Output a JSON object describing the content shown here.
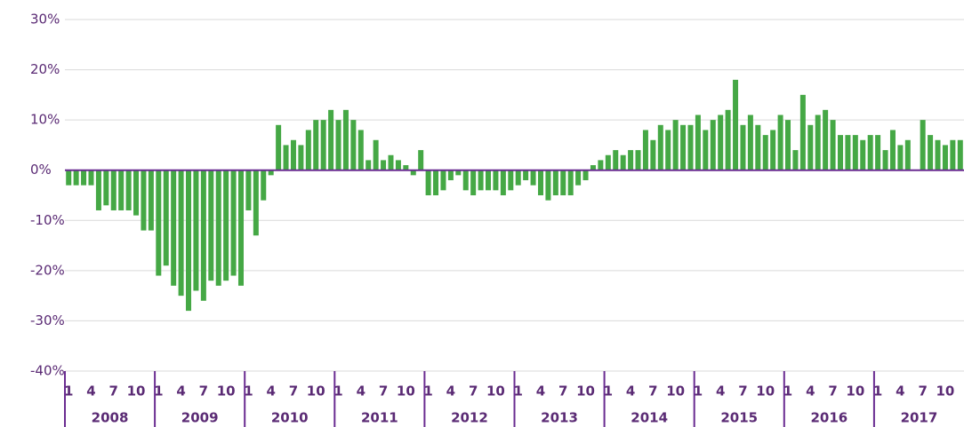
{
  "chart_data": {
    "type": "bar",
    "years": [
      "2008",
      "2009",
      "2010",
      "2011",
      "2012",
      "2013",
      "2014",
      "2015",
      "2016",
      "2017"
    ],
    "categories": [
      "1",
      null,
      null,
      "4",
      null,
      null,
      "7",
      null,
      null,
      "10",
      null,
      null,
      "1",
      null,
      null,
      "4",
      null,
      null,
      "7",
      null,
      null,
      "10",
      null,
      null,
      "1",
      null,
      null,
      "4",
      null,
      null,
      "7",
      null,
      null,
      "10",
      null,
      null,
      "1",
      null,
      null,
      "4",
      null,
      null,
      "7",
      null,
      null,
      "10",
      null,
      null,
      "1",
      null,
      null,
      "4",
      null,
      null,
      "7",
      null,
      null,
      "10",
      null,
      null,
      "1",
      null,
      null,
      "4",
      null,
      null,
      "7",
      null,
      null,
      "10",
      null,
      null,
      "1",
      null,
      null,
      "4",
      null,
      null,
      "7",
      null,
      null,
      "10",
      null,
      null,
      "1",
      null,
      null,
      "4",
      null,
      null,
      "7",
      null,
      null,
      "10",
      null,
      null,
      "1",
      null,
      null,
      "4",
      null,
      null,
      "7",
      null,
      null,
      "10",
      null,
      null,
      "1",
      null,
      null,
      "4",
      null,
      null,
      "7",
      null,
      null,
      "10",
      null,
      null
    ],
    "values": [
      -3,
      -3,
      -3,
      -3,
      -8,
      -7,
      -8,
      -8,
      -8,
      -9,
      -12,
      -12,
      -21,
      -19,
      -23,
      -25,
      -28,
      -24,
      -26,
      -22,
      -23,
      -22,
      -21,
      -23,
      -8,
      -13,
      -6,
      -1,
      9,
      5,
      6,
      5,
      8,
      10,
      10,
      12,
      10,
      12,
      10,
      8,
      2,
      6,
      2,
      3,
      2,
      1,
      -1,
      4,
      -5,
      -5,
      -4,
      -2,
      -1,
      -4,
      -5,
      -4,
      -4,
      -4,
      -5,
      -4,
      -3,
      -2,
      -3,
      -5,
      -6,
      -5,
      -5,
      -5,
      -3,
      -2,
      1,
      2,
      3,
      4,
      3,
      4,
      4,
      8,
      6,
      9,
      8,
      10,
      9,
      9,
      11,
      8,
      10,
      11,
      12,
      18,
      9,
      11,
      9,
      7,
      8,
      11,
      10,
      4,
      15,
      9,
      11,
      12,
      10,
      7,
      7,
      7,
      6,
      7,
      7,
      4,
      8,
      5,
      6,
      0,
      10,
      7,
      6,
      5,
      6,
      6
    ],
    "color": "#45a845",
    "ylim": [
      -40,
      30
    ],
    "yticks": [
      {
        "value": -40,
        "label": "-40%"
      },
      {
        "value": -30,
        "label": "-30%"
      },
      {
        "value": -20,
        "label": "-20%"
      },
      {
        "value": -10,
        "label": "-10%"
      },
      {
        "value": 0,
        "label": "0%"
      },
      {
        "value": 10,
        "label": "10%"
      },
      {
        "value": 20,
        "label": "20%"
      },
      {
        "value": 30,
        "label": "30%"
      }
    ],
    "grid": true
  }
}
